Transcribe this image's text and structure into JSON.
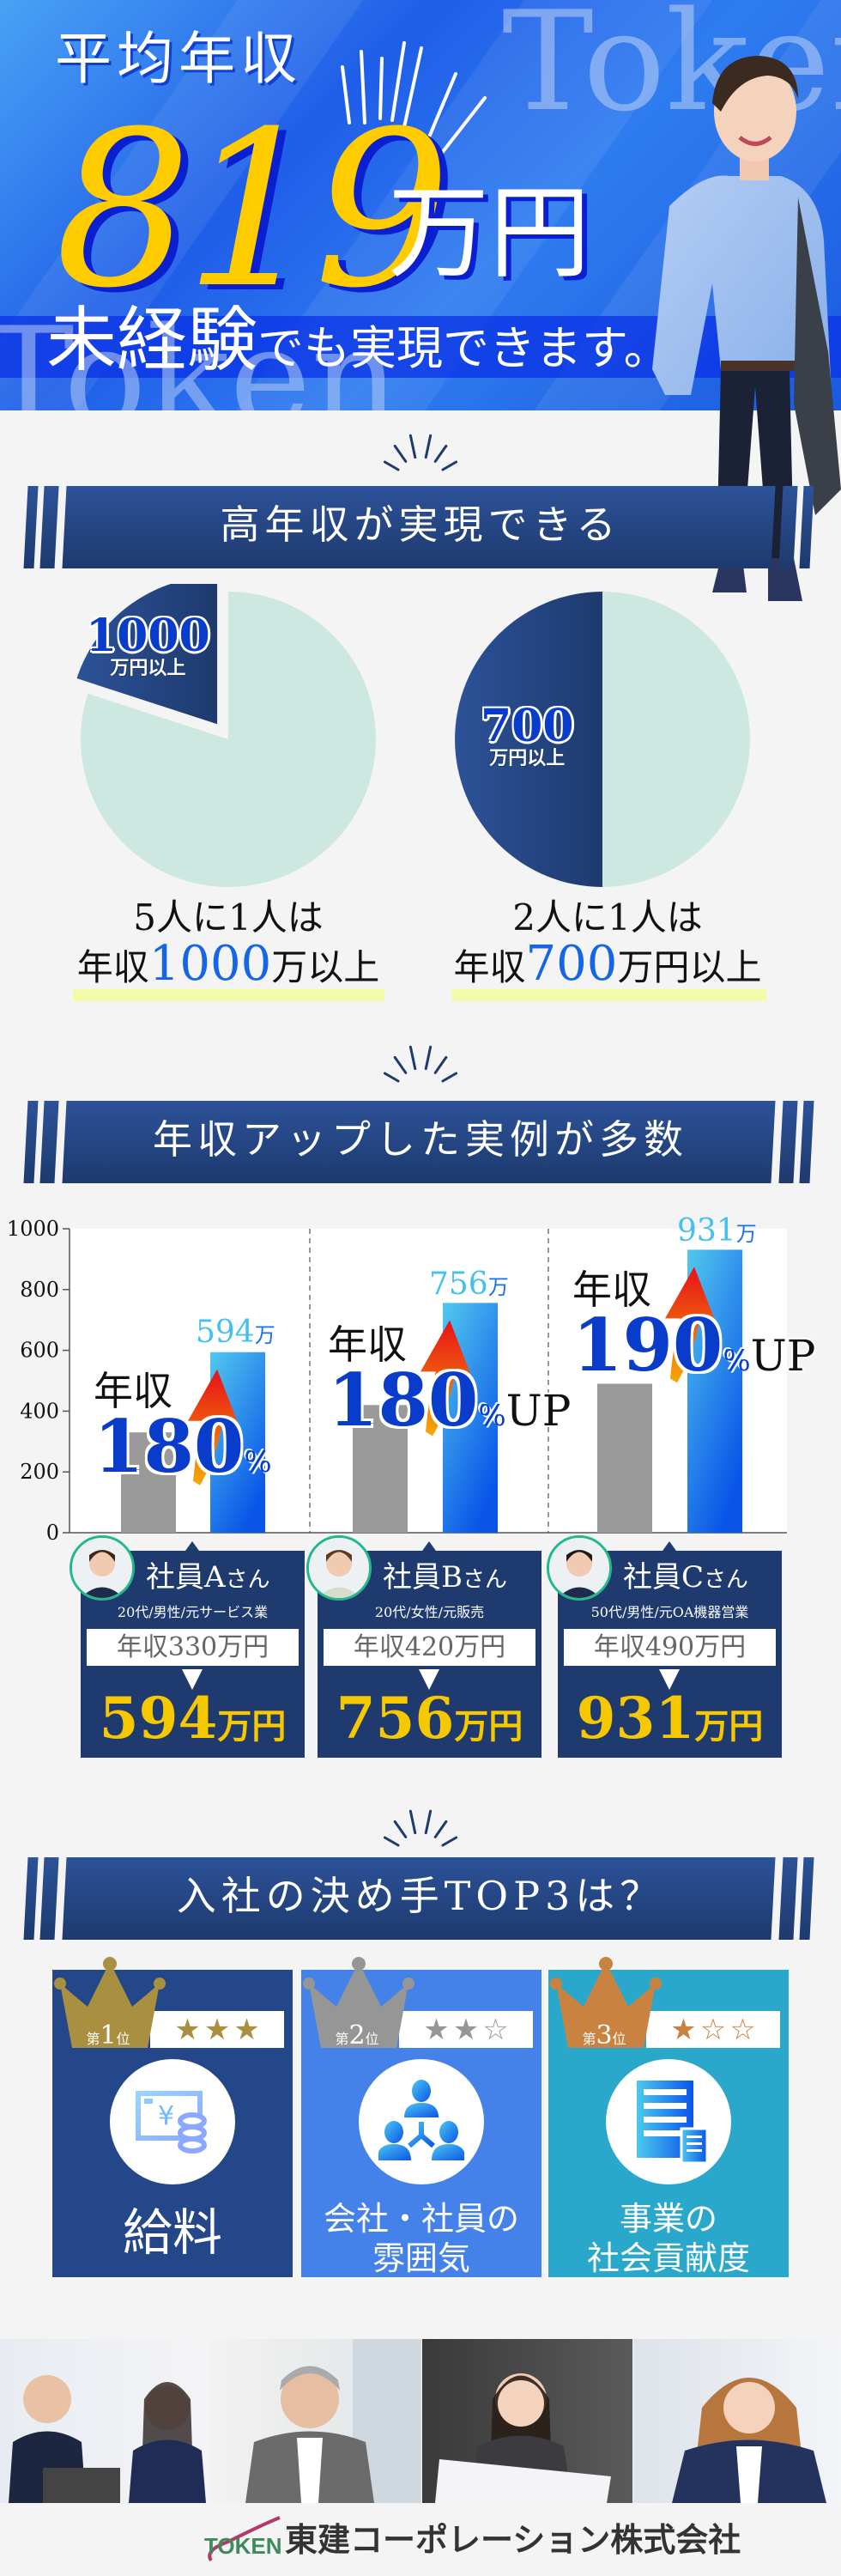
{
  "hero": {
    "title": "平均年収",
    "amount": "819",
    "unit": "万円",
    "tagline_strong": "未経験",
    "tagline_rest": "でも実現できます。",
    "watermark": "Token"
  },
  "section1": {
    "title": "高年収が実現できる"
  },
  "pies": [
    {
      "caption1": "5人に1人は",
      "caption2_pre": "年収",
      "caption2_num": "1000",
      "caption2_post": "万以上"
    },
    {
      "caption1": "2人に1人は",
      "caption2_pre": "年収",
      "caption2_num": "700",
      "caption2_post": "万円以上"
    }
  ],
  "section2": {
    "title": "年収アップした実例が多数"
  },
  "employees": [
    {
      "name": "社員A",
      "honorific": "さん",
      "profile": "20代/男性/元サービス業",
      "before": "年収330万円",
      "after_num": "594",
      "after_unit": "万円"
    },
    {
      "name": "社員B",
      "honorific": "さん",
      "profile": "20代/女性/元販売",
      "before": "年収420万円",
      "after_num": "756",
      "after_unit": "万円"
    },
    {
      "name": "社員C",
      "honorific": "さん",
      "profile": "50代/男性/元OA機器営業",
      "before": "年収490万円",
      "after_num": "931",
      "after_unit": "万円"
    }
  ],
  "section3": {
    "title": "入社の決め手TOP3は？"
  },
  "ranks": [
    {
      "rank_pre": "第",
      "rank_num": "1",
      "rank_post": "位",
      "stars": 3,
      "label_lines": [
        "給料"
      ],
      "icon": "salary-yen-coins-icon",
      "color": "#24478a",
      "crown_color": "#a89040"
    },
    {
      "rank_pre": "第",
      "rank_num": "2",
      "rank_post": "位",
      "stars": 2,
      "label_lines": [
        "会社・社員の",
        "雰囲気"
      ],
      "icon": "people-network-icon",
      "color": "#4482ea",
      "crown_color": "#969696"
    },
    {
      "rank_pre": "第",
      "rank_num": "3",
      "rank_post": "位",
      "stars": 1,
      "label_lines": [
        "事業の",
        "社会貢献度"
      ],
      "icon": "building-document-icon",
      "color": "#2aa8cc",
      "crown_color": "#c98240"
    }
  ],
  "footer": {
    "logo_mark": "TOKEN",
    "company": "東建コーポレーション株式会社"
  },
  "colors": {
    "navy": "#1f3a6e",
    "pie_light": "#cce8e0",
    "bar_before": "#9a9a9a",
    "bar_after_top": "#52c8ee",
    "bar_after_bottom": "#0a55e8",
    "accent_yellow": "#f5c800",
    "avatar_ring": "#22b98a"
  },
  "chart_data": [
    {
      "type": "pie",
      "values": [
        20,
        80
      ],
      "slice_label_num": "1000",
      "slice_label_unit": "万円以上",
      "exploded": "highlighted slice"
    },
    {
      "type": "pie",
      "values": [
        50,
        50
      ],
      "slice_label_num": "700",
      "slice_label_unit": "万円以上"
    },
    {
      "type": "bar",
      "categories": [
        "社員A",
        "社員B",
        "社員C"
      ],
      "series": [
        {
          "values": [
            330,
            420,
            490
          ]
        },
        {
          "values": [
            594,
            756,
            931
          ]
        }
      ],
      "ylim": [
        0,
        1000
      ],
      "yticks": [
        "0",
        "200",
        "400",
        "600",
        "800",
        "1000"
      ],
      "value_labels": [
        {
          "num": "594",
          "unit": "万"
        },
        {
          "num": "756",
          "unit": "万"
        },
        {
          "num": "931",
          "unit": "万"
        }
      ],
      "annotations": [
        {
          "pre": "年収",
          "num": "180",
          "pct": "%",
          "suffix": ""
        },
        {
          "pre": "年収",
          "num": "180",
          "pct": "%",
          "suffix": "UP"
        },
        {
          "pre": "年収",
          "num": "190",
          "pct": "%",
          "suffix": "UP"
        }
      ],
      "grid": false
    }
  ]
}
